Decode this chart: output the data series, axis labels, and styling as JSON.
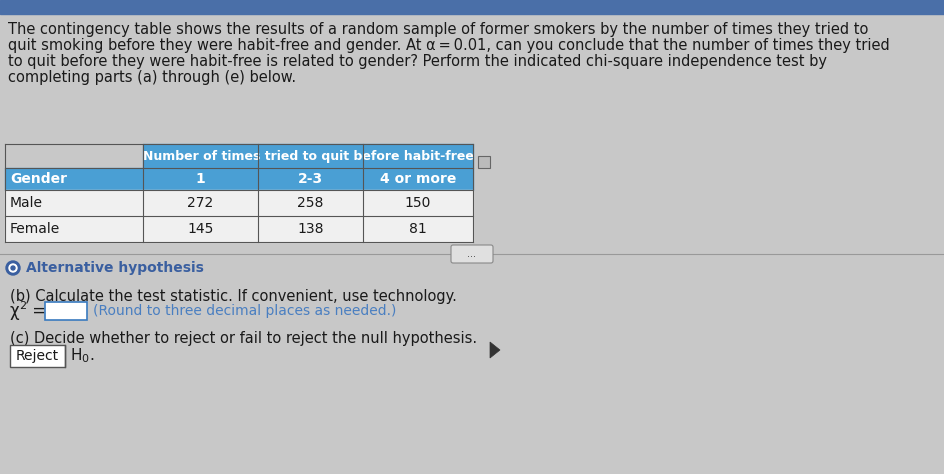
{
  "bg_color": "#c8c8c8",
  "top_bar_color": "#4a6fa8",
  "paragraph_text_lines": [
    "The contingency table shows the results of a random sample of former smokers by the number of times they tried to",
    "quit smoking before they were habit-free and gender. At α = 0.01, can you conclude that the number of times they tried",
    "to quit before they were habit-free is related to gender? Perform the indicated chi-square independence test by",
    "completing parts (a) through (e) below."
  ],
  "table_header_bg": "#4a9fd4",
  "table_subheader_bg": "#4a9fd4",
  "table_header_text_color": "#ffffff",
  "table_row_bg": "#f0f0f0",
  "table_border_color": "#555555",
  "table_col_header": "Gender",
  "table_span_header": "Number of times tried to quit before habit-free",
  "table_sub_headers": [
    "1",
    "2-3",
    "4 or more"
  ],
  "table_rows": [
    [
      "Male",
      "272",
      "258",
      "150"
    ],
    [
      "Female",
      "145",
      "138",
      "81"
    ]
  ],
  "dots_label": "...",
  "alt_hyp_bullet_color": "#3a5fa0",
  "alt_hyp_label": "Alternative hypothesis",
  "part_b_text": "(b) Calculate the test statistic. If convenient, use technology.",
  "chi_sq_label": "χ",
  "chi_sq_sup": "2",
  "chi_eq": " = ",
  "round_note": "(Round to three decimal places as needed.)",
  "part_c_text": "(c) Decide whether to reject or fail to reject the null hypothesis.",
  "reject_label": "Reject",
  "h0_label": "H",
  "h0_sub": "0",
  "h0_end": ".",
  "text_color_blue": "#4a7fc1",
  "text_color_dark": "#1a1a1a",
  "font_size_para": 10.5,
  "font_size_table": 10
}
